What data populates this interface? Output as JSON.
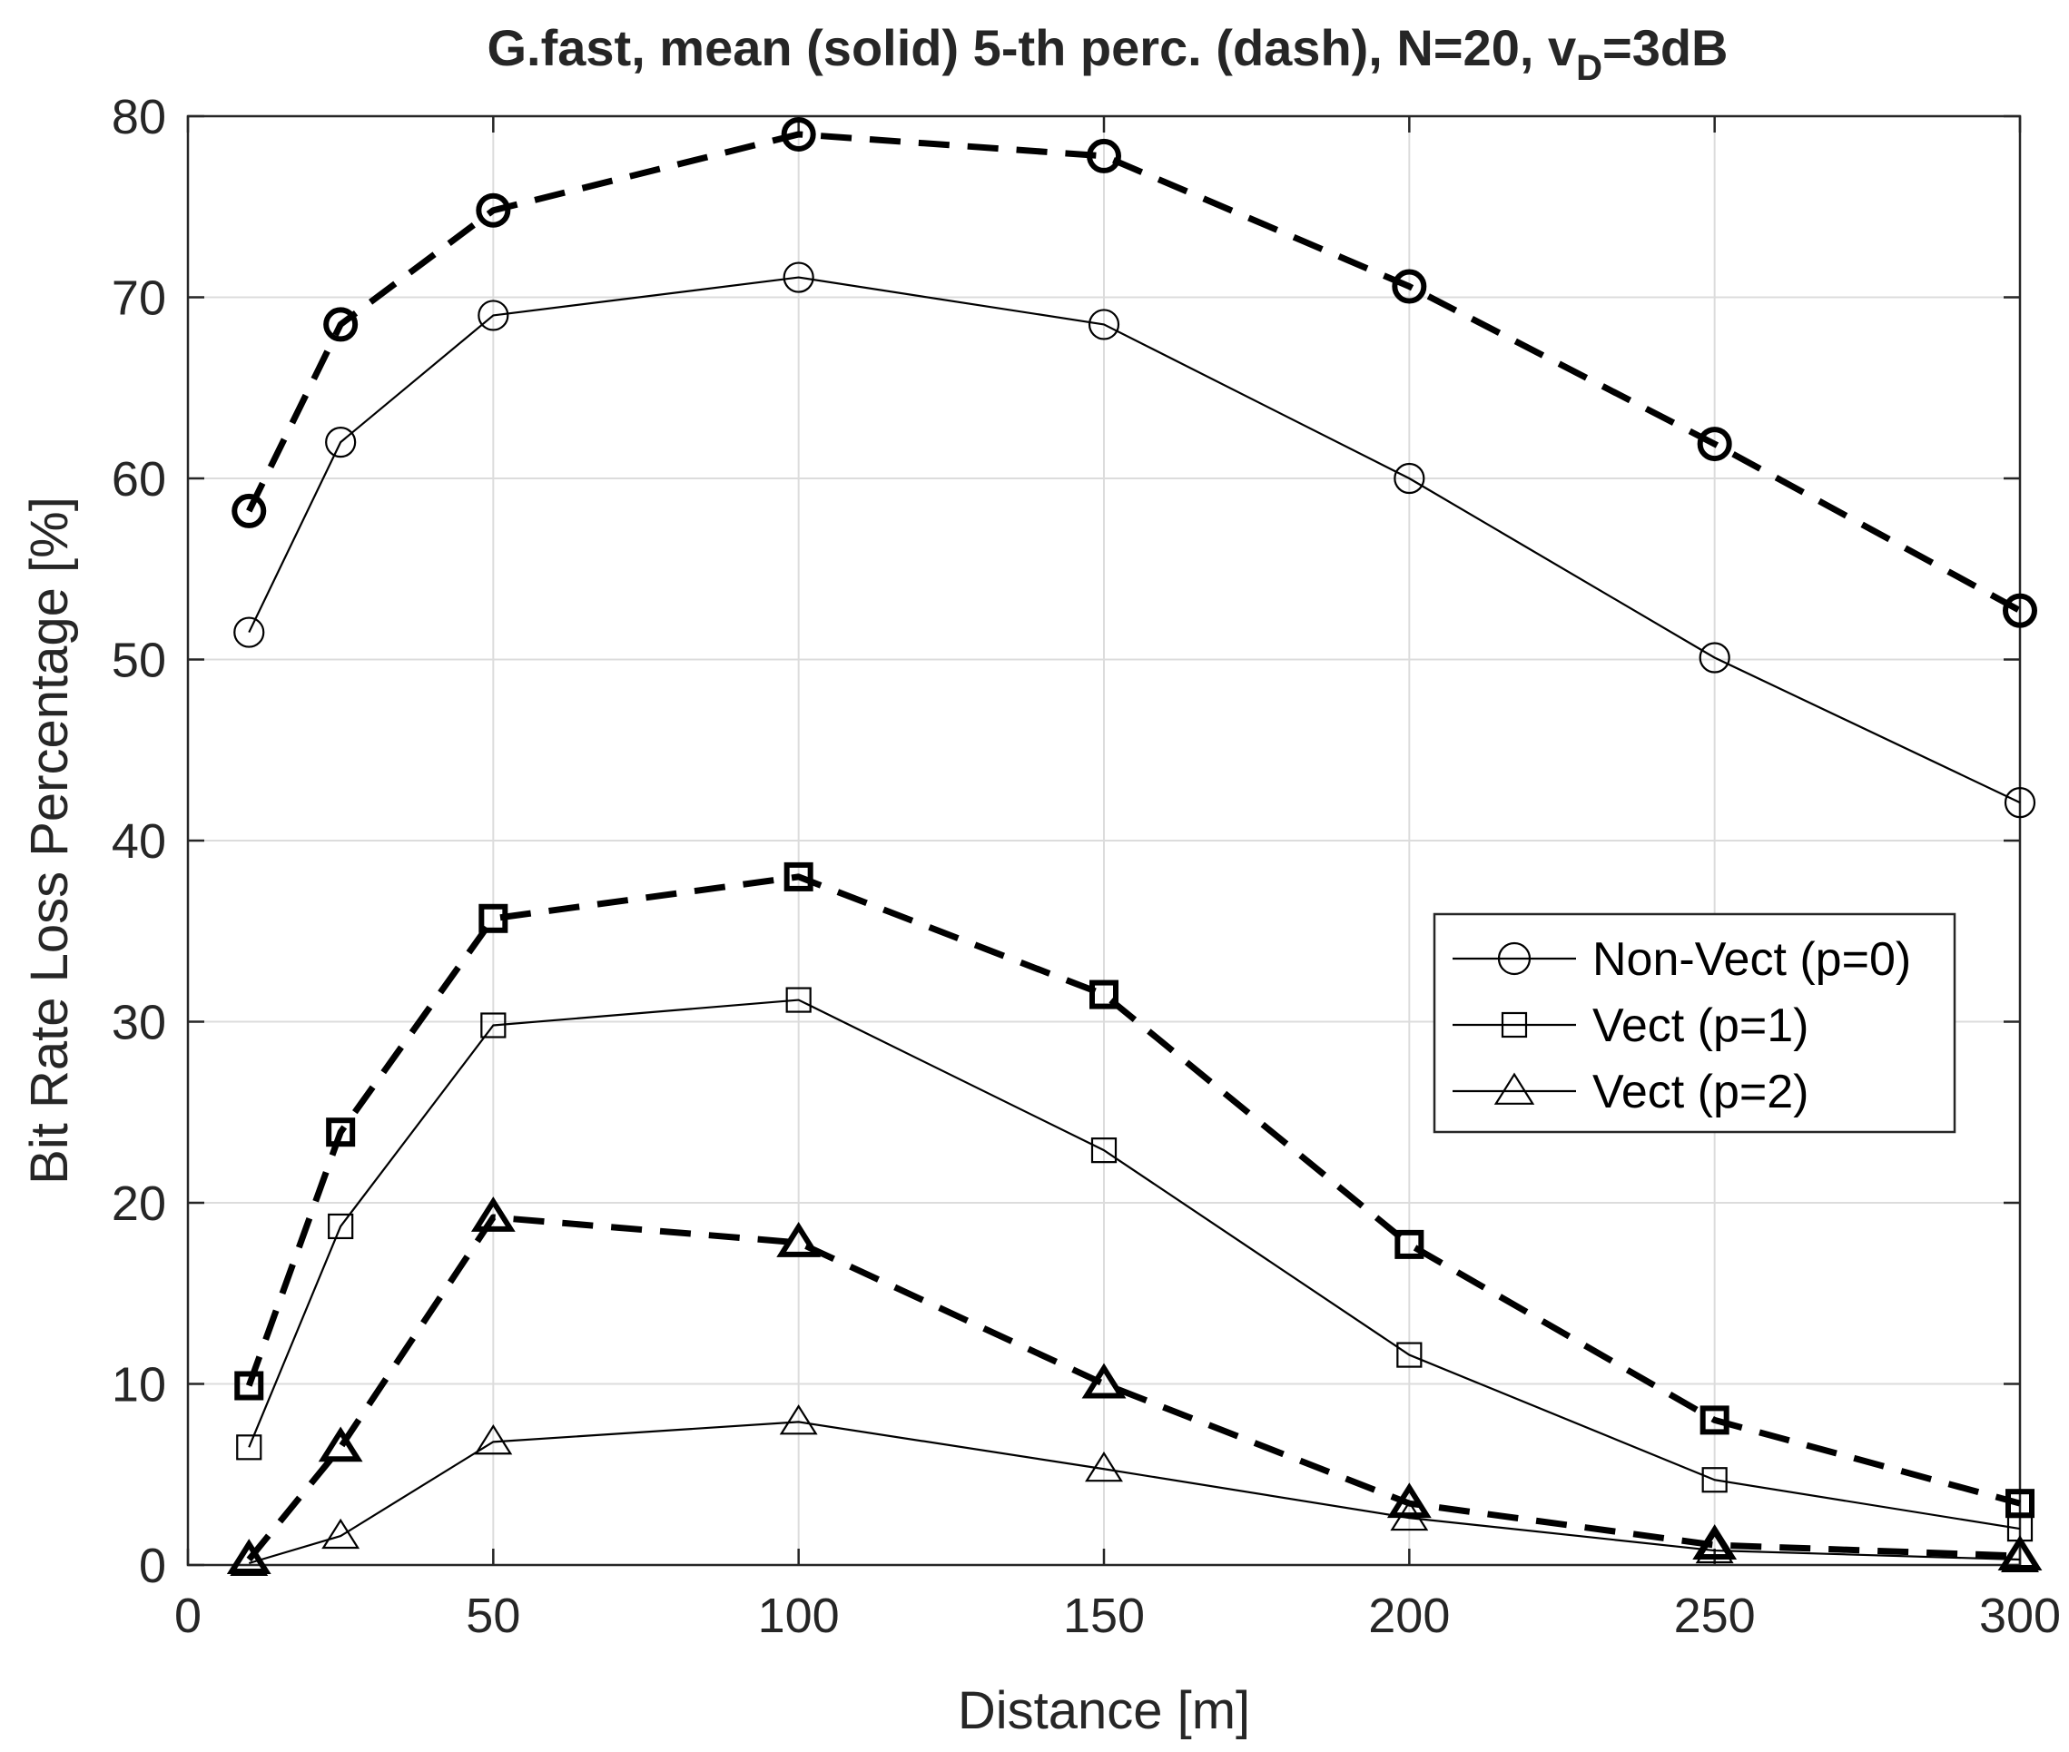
{
  "chart_data": {
    "type": "line",
    "title": {
      "main": "G.fast, mean (solid) 5-th perc. (dash), N=20, v",
      "subscript": "D",
      "suffix": "=3dB"
    },
    "xlabel": "Distance [m]",
    "ylabel": "Bit Rate Loss Percentage [%]",
    "xlim": [
      0,
      300
    ],
    "ylim": [
      0,
      80
    ],
    "xticks": [
      0,
      50,
      100,
      150,
      200,
      250,
      300
    ],
    "yticks": [
      0,
      10,
      20,
      30,
      40,
      50,
      60,
      70,
      80
    ],
    "grid": true,
    "legend_position": "right",
    "x": [
      10,
      25,
      50,
      100,
      150,
      200,
      250,
      300
    ],
    "series": [
      {
        "name": "Non-Vect (p=0)",
        "marker": "circle",
        "style": "solid",
        "statistic": "mean",
        "values": [
          51.5,
          62.0,
          69.0,
          71.1,
          68.5,
          60.0,
          50.1,
          42.1
        ]
      },
      {
        "name": "Non-Vect (p=0)",
        "marker": "circle",
        "style": "dash",
        "statistic": "5-th perc.",
        "values": [
          58.2,
          68.5,
          74.8,
          79.0,
          77.8,
          70.6,
          61.9,
          52.7
        ]
      },
      {
        "name": "Vect (p=1)",
        "marker": "square",
        "style": "solid",
        "statistic": "mean",
        "values": [
          6.5,
          18.7,
          29.8,
          31.2,
          22.9,
          11.6,
          4.7,
          2.0
        ]
      },
      {
        "name": "Vect (p=1)",
        "marker": "square",
        "style": "dash",
        "statistic": "5-th perc.",
        "values": [
          9.9,
          23.9,
          35.7,
          38.0,
          31.5,
          17.7,
          8.0,
          3.4
        ]
      },
      {
        "name": "Vect (p=2)",
        "marker": "triangle",
        "style": "solid",
        "statistic": "mean",
        "values": [
          0.1,
          1.6,
          6.8,
          7.9,
          5.3,
          2.6,
          0.8,
          0.3
        ]
      },
      {
        "name": "Vect (p=2)",
        "marker": "triangle",
        "style": "dash",
        "statistic": "5-th perc.",
        "values": [
          0.3,
          6.5,
          19.2,
          17.8,
          10.0,
          3.4,
          1.1,
          0.5
        ]
      }
    ],
    "legend": [
      "Non-Vect (p=0)",
      "Vect (p=1)",
      "Vect (p=2)"
    ]
  }
}
